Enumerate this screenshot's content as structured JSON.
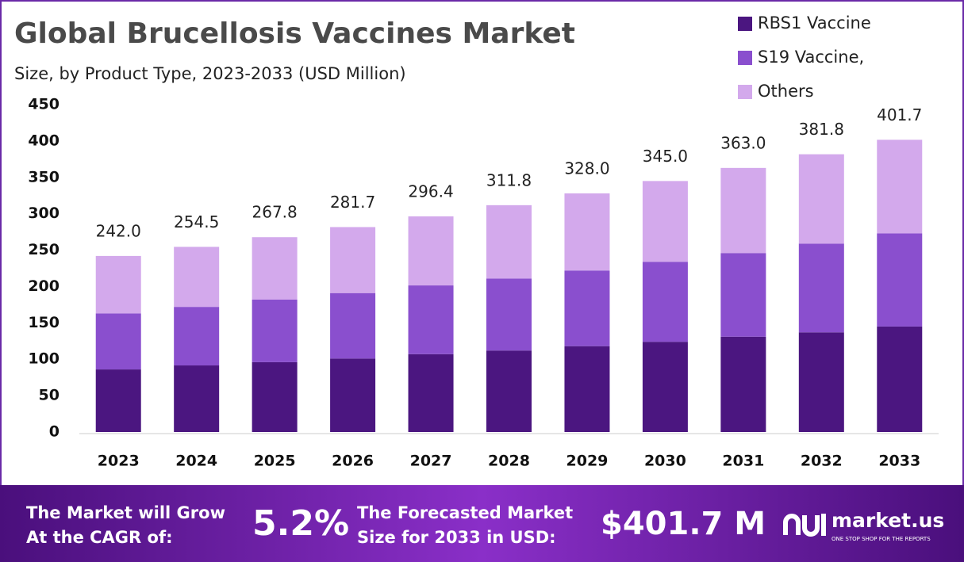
{
  "chart_data": {
    "type": "stacked_bar",
    "title": "Global Brucellosis Vaccines Market",
    "subtitle": "Size, by Product Type, 2023-2033 (USD Million)",
    "categories": [
      "2023",
      "2024",
      "2025",
      "2026",
      "2027",
      "2028",
      "2029",
      "2030",
      "2031",
      "2032",
      "2033"
    ],
    "series": [
      {
        "name": "RBS1 Vaccine",
        "color": "#4b1680",
        "values": [
          86,
          91.5,
          96,
          101,
          107,
          112,
          118,
          124,
          131,
          137,
          145
        ]
      },
      {
        "name": "S19 Vaccine,",
        "color": "#8a4fce",
        "values": [
          77,
          80.5,
          86,
          90,
          94.5,
          99,
          104,
          110,
          115,
          122,
          128
        ]
      },
      {
        "name": "Others",
        "color": "#d3a9ec",
        "values": [
          79,
          82.5,
          85.8,
          90.7,
          94.9,
          100.8,
          106,
          111,
          117,
          122.8,
          128.7
        ]
      }
    ],
    "totals": [
      242,
      254.5,
      267.8,
      281.7,
      296.4,
      311.8,
      328,
      345,
      363,
      381.8,
      401.7
    ],
    "total_labels": [
      "242.0",
      "254.5",
      "267.8",
      "281.7",
      "296.4",
      "311.8",
      "328.0",
      "345.0",
      "363.0",
      "381.8",
      "401.7"
    ],
    "ylim": [
      0,
      450
    ],
    "yticks": [
      0,
      50,
      100,
      150,
      200,
      250,
      300,
      350,
      400,
      450
    ],
    "grid": false
  },
  "footer": {
    "cagr_text": [
      "The Market will Grow",
      "At the CAGR of:"
    ],
    "cagr_value": "5.2%",
    "forecast_text": [
      "The Forecasted Market",
      "Size for 2033 in USD:"
    ],
    "forecast_value": "$401.7 M",
    "brand": "market.us",
    "tagline": "ONE STOP SHOP FOR THE REPORTS"
  }
}
